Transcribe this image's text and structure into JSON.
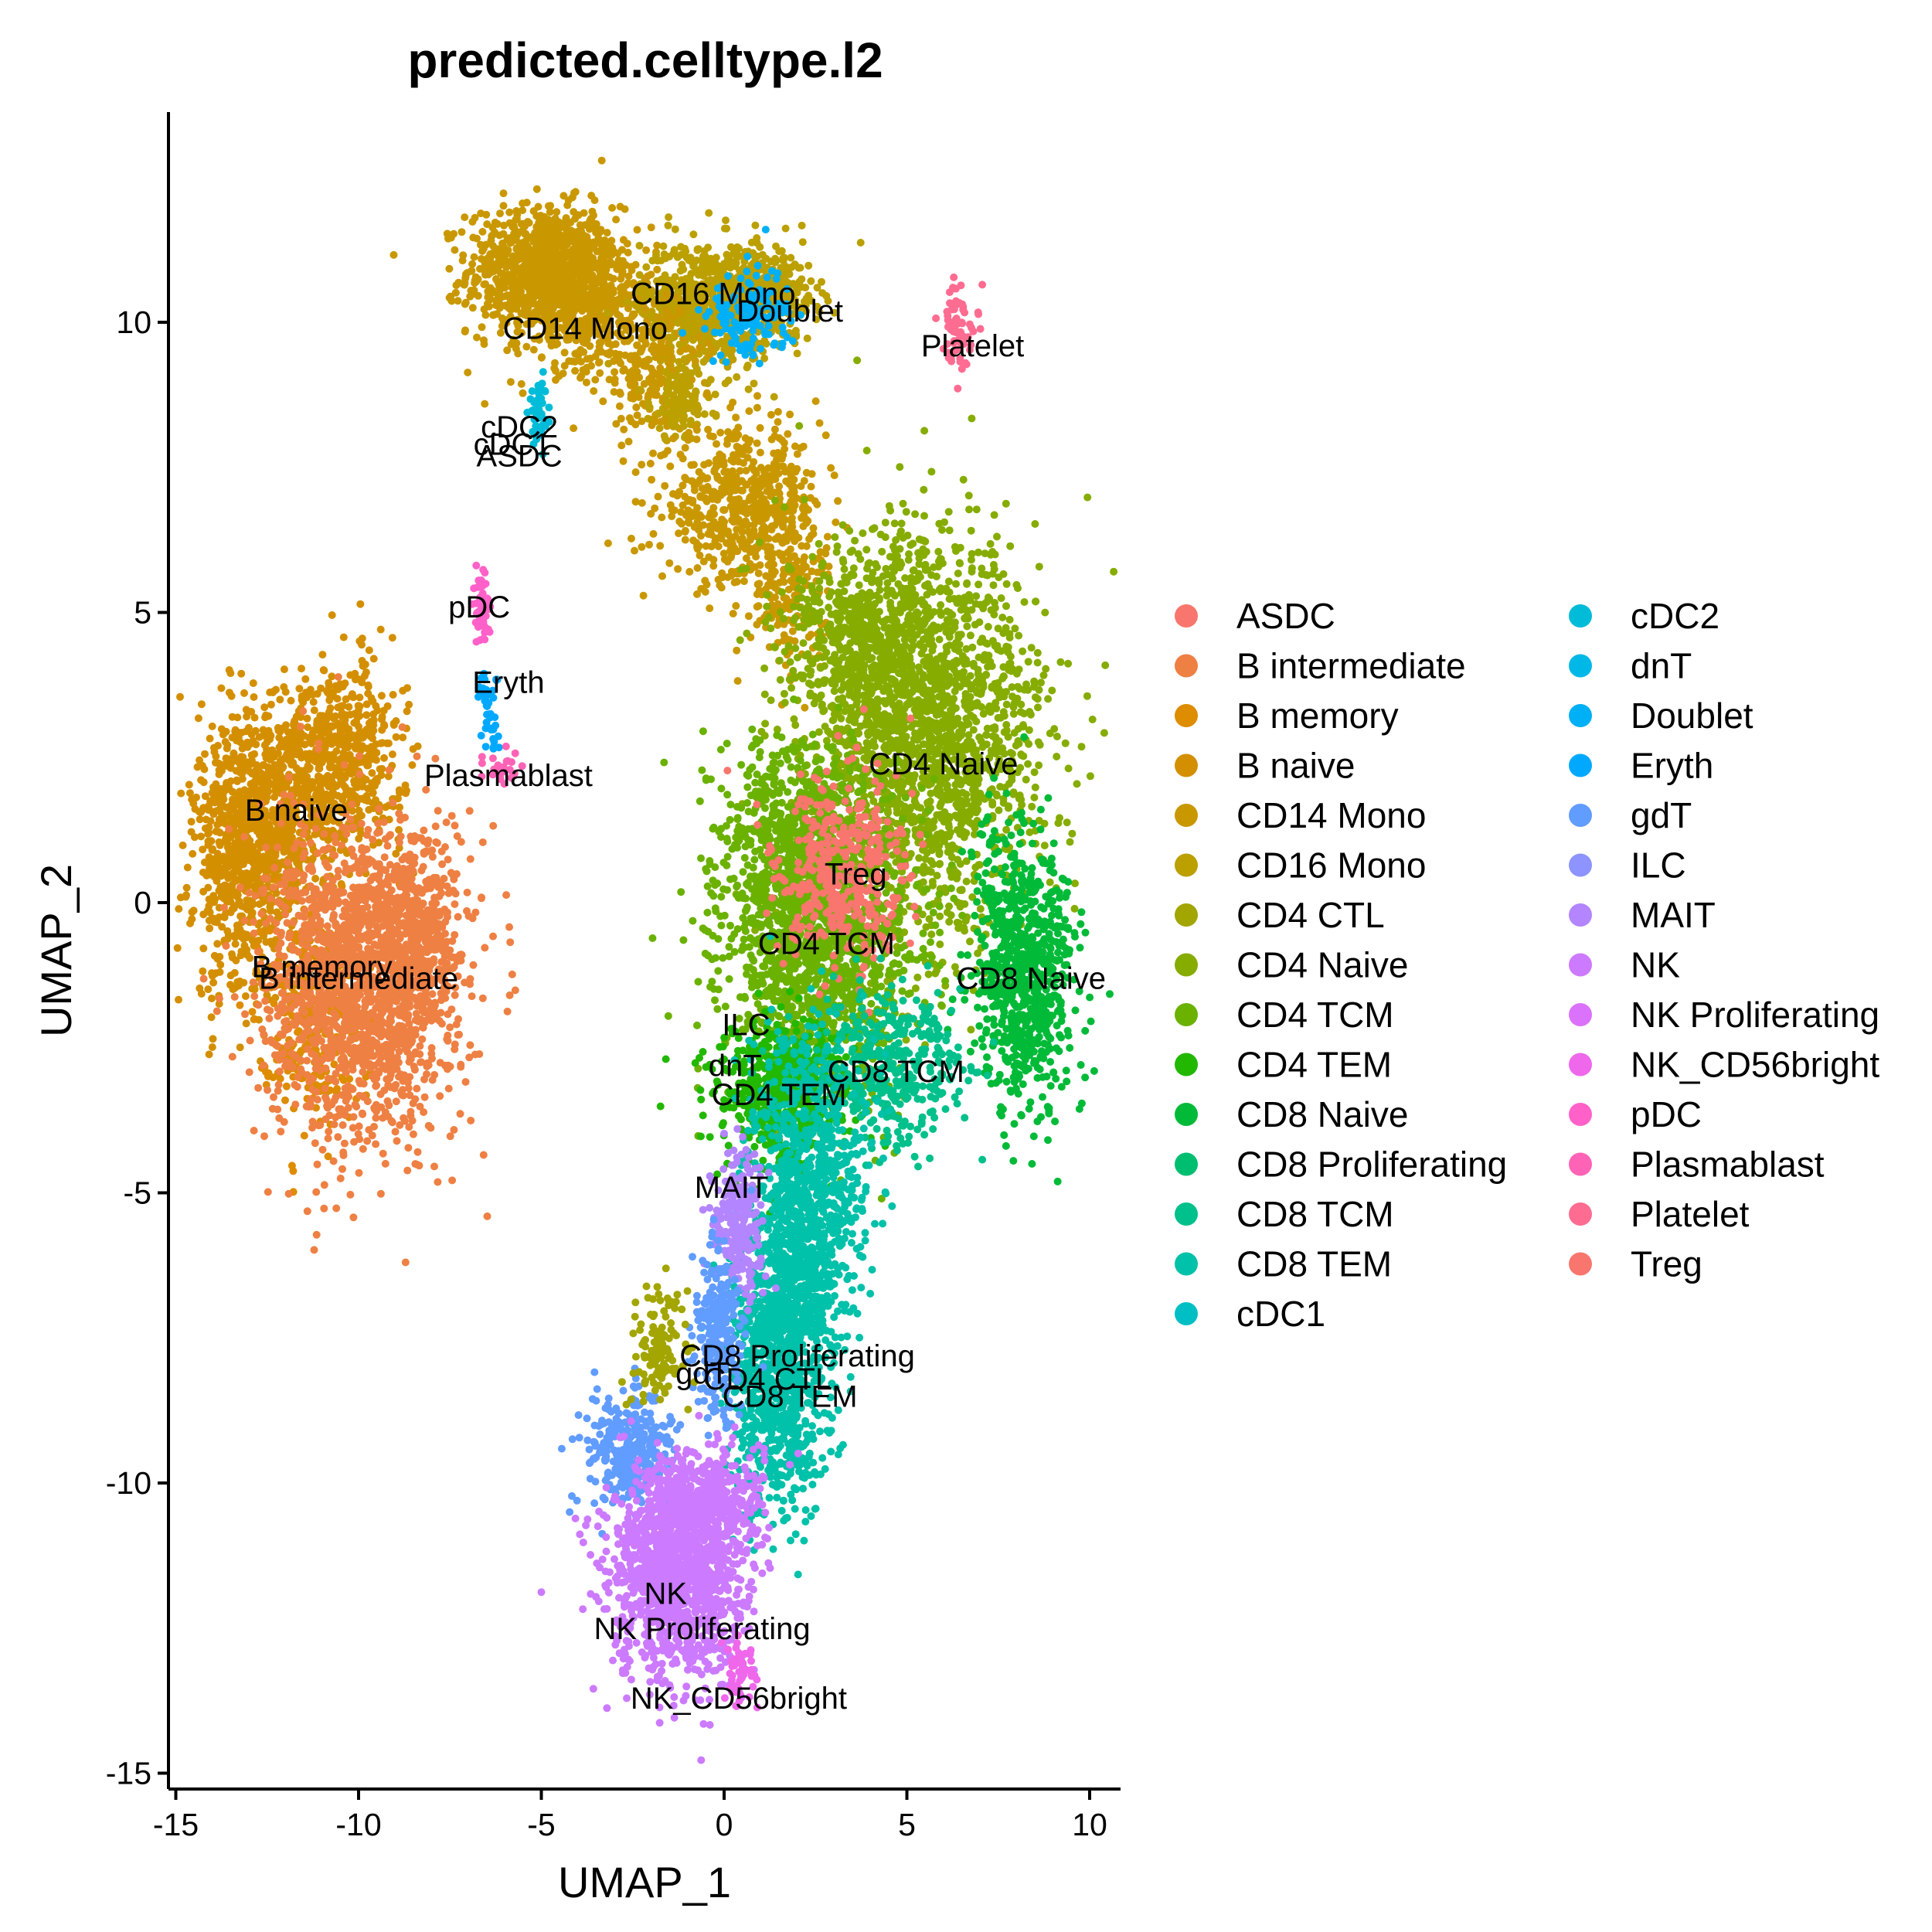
{
  "chart_data": {
    "type": "scatter",
    "title": "predicted.celltype.l2",
    "xlabel": "UMAP_1",
    "ylabel": "UMAP_2",
    "xlim": [
      -15.2,
      10.8
    ],
    "ylim": [
      -15.2,
      13.6
    ],
    "x_ticks": [
      -15,
      -10,
      -5,
      0,
      5,
      10
    ],
    "y_ticks": [
      -15,
      -10,
      -5,
      0,
      5,
      10
    ],
    "x_tick_labels": [
      "-15",
      "-10",
      "-5",
      "0",
      "5",
      "10"
    ],
    "y_tick_labels": [
      "-15",
      "-10",
      "-5",
      "0",
      "5",
      "10"
    ],
    "grid": false,
    "legend_position": "right",
    "legend_columns": 2,
    "series": [
      {
        "name": "ASDC",
        "color": "#F8766D"
      },
      {
        "name": "B intermediate",
        "color": "#EE8043"
      },
      {
        "name": "B memory",
        "color": "#DE8C00"
      },
      {
        "name": "B naive",
        "color": "#D48F00"
      },
      {
        "name": "CD14 Mono",
        "color": "#C99800"
      },
      {
        "name": "CD16 Mono",
        "color": "#BBA000"
      },
      {
        "name": "CD4 CTL",
        "color": "#A3A500"
      },
      {
        "name": "CD4 Naive",
        "color": "#86AC00"
      },
      {
        "name": "CD4 TCM",
        "color": "#6BB100"
      },
      {
        "name": "CD4 TEM",
        "color": "#22B800"
      },
      {
        "name": "CD8 Naive",
        "color": "#00BA38"
      },
      {
        "name": "CD8 Proliferating",
        "color": "#00BE70"
      },
      {
        "name": "CD8 TCM",
        "color": "#00C08B"
      },
      {
        "name": "CD8 TEM",
        "color": "#00C1A9"
      },
      {
        "name": "cDC1",
        "color": "#00BFC4"
      },
      {
        "name": "cDC2",
        "color": "#00BCD8"
      },
      {
        "name": "dnT",
        "color": "#00B8E7"
      },
      {
        "name": "Doublet",
        "color": "#00B0F6"
      },
      {
        "name": "Eryth",
        "color": "#00A9FF"
      },
      {
        "name": "gdT",
        "color": "#619CFF"
      },
      {
        "name": "ILC",
        "color": "#8D94FF"
      },
      {
        "name": "MAIT",
        "color": "#B385FF"
      },
      {
        "name": "NK",
        "color": "#CC7AFF"
      },
      {
        "name": "NK Proliferating",
        "color": "#DB72FB"
      },
      {
        "name": "NK_CD56bright",
        "color": "#EF67EB"
      },
      {
        "name": "pDC",
        "color": "#FF61C9"
      },
      {
        "name": "Plasmablast",
        "color": "#FF63B6"
      },
      {
        "name": "Platelet",
        "color": "#FF6C91"
      },
      {
        "name": "Treg",
        "color": "#F8766D"
      }
    ],
    "cluster_labels": [
      {
        "text": "CD16 Mono",
        "x": -0.3,
        "y": 10.5
      },
      {
        "text": "Doublet",
        "x": 1.8,
        "y": 10.2
      },
      {
        "text": "CD14 Mono",
        "x": -3.8,
        "y": 9.9
      },
      {
        "text": "Platelet",
        "x": 6.8,
        "y": 9.6
      },
      {
        "text": "cDC2",
        "x": -5.6,
        "y": 8.2
      },
      {
        "text": "cDC1",
        "x": -5.8,
        "y": 7.9
      },
      {
        "text": "ASDC",
        "x": -5.6,
        "y": 7.7
      },
      {
        "text": "pDC",
        "x": -6.7,
        "y": 5.1
      },
      {
        "text": "Eryth",
        "x": -5.9,
        "y": 3.8
      },
      {
        "text": "Plasmablast",
        "x": -5.9,
        "y": 2.2
      },
      {
        "text": "CD4 Naive",
        "x": 6.0,
        "y": 2.4
      },
      {
        "text": "B naive",
        "x": -11.7,
        "y": 1.6
      },
      {
        "text": "Treg",
        "x": 3.6,
        "y": 0.5
      },
      {
        "text": "CD4 TCM",
        "x": 2.8,
        "y": -0.7
      },
      {
        "text": "B memory",
        "x": -11.0,
        "y": -1.1
      },
      {
        "text": "B intermediate",
        "x": -10.0,
        "y": -1.3
      },
      {
        "text": "CD8 Naive",
        "x": 8.4,
        "y": -1.3
      },
      {
        "text": "ILC",
        "x": 0.6,
        "y": -2.1
      },
      {
        "text": "dnT",
        "x": 0.3,
        "y": -2.8
      },
      {
        "text": "CD8 TCM",
        "x": 4.7,
        "y": -2.9
      },
      {
        "text": "CD4 TEM",
        "x": 1.5,
        "y": -3.3
      },
      {
        "text": "MAIT",
        "x": 0.2,
        "y": -4.9
      },
      {
        "text": "CD8 Proliferating",
        "x": 2.0,
        "y": -7.8
      },
      {
        "text": "gdT",
        "x": -0.6,
        "y": -8.1
      },
      {
        "text": "CD4 CTL",
        "x": 1.2,
        "y": -8.2
      },
      {
        "text": "CD8 TEM",
        "x": 1.8,
        "y": -8.5
      },
      {
        "text": "NK",
        "x": -1.6,
        "y": -11.9
      },
      {
        "text": "NK Proliferating",
        "x": -0.6,
        "y": -12.5
      },
      {
        "text": "NK_CD56bright",
        "x": 0.4,
        "y": -13.7
      }
    ]
  }
}
